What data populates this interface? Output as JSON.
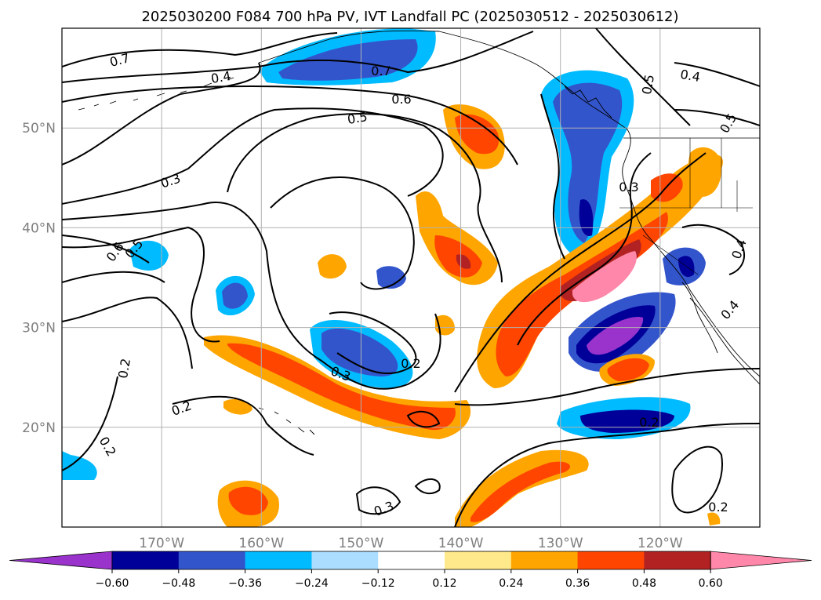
{
  "title": "2025030200 F084 700 hPa PV, IVT Landfall PC (2025030512 - 2025030612)",
  "map": {
    "lon_range": [
      -180,
      -110
    ],
    "lat_range": [
      10,
      60
    ],
    "lat_ticks": [
      "50°N",
      "40°N",
      "30°N",
      "20°N"
    ],
    "lon_ticks": [
      "170°W",
      "160°W",
      "150°W",
      "140°W",
      "130°W",
      "120°W"
    ],
    "gridlines": true,
    "contour_labels": [
      "0.7",
      "0.4",
      "0.7",
      "0.6",
      "0.5",
      "0.3",
      "0.6",
      "0.5",
      "0.2",
      "0.3",
      "0.2",
      "0.2",
      "0.3",
      "0.2",
      "0.4",
      "0.5",
      "0.5",
      "0.3",
      "0.4",
      "0.4",
      "0.2",
      "0.2"
    ]
  },
  "colorbar": {
    "tick_labels": [
      "−0.60",
      "−0.48",
      "−0.36",
      "−0.24",
      "−0.12",
      "0.12",
      "0.24",
      "0.36",
      "0.48",
      "0.60"
    ],
    "colors": [
      "#9933cc",
      "#000099",
      "#3355cc",
      "#00bbff",
      "#aaddff",
      "#ffffff",
      "#ffe98a",
      "#ffa500",
      "#ff4500",
      "#b22222",
      "#ff88aa"
    ],
    "extend": "both"
  },
  "palette": {
    "coast": "#000000",
    "grid": "#b0b0b0"
  }
}
